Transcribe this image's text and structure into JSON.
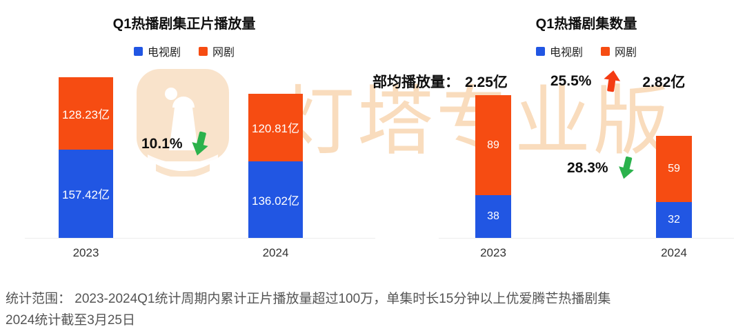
{
  "watermark": {
    "text": "灯塔专业版",
    "logo": "lighthouse-logo",
    "color": "#f8d6b2"
  },
  "accents": {
    "tv_blue": "#2156e3",
    "web_orange": "#f64c12",
    "drop_green": "#2bb24c",
    "rise_red": "#f43b12"
  },
  "chart_data": [
    {
      "type": "bar",
      "stacked": true,
      "title": "Q1热播剧集正片播放量",
      "categories": [
        "2023",
        "2024"
      ],
      "series": [
        {
          "name": "电视剧",
          "color": "#2156e3",
          "values": [
            157.42,
            136.02
          ],
          "labels": [
            "157.42亿",
            "136.02亿"
          ]
        },
        {
          "name": "网剧",
          "color": "#f64c12",
          "values": [
            128.23,
            120.81
          ],
          "labels": [
            "128.23亿",
            "120.81亿"
          ]
        }
      ],
      "ylim": [
        0,
        286
      ],
      "grid": false,
      "legend_position": "top",
      "annotations": [
        {
          "text": "10.1%",
          "direction": "down",
          "color": "#2bb24c"
        }
      ]
    },
    {
      "type": "bar",
      "stacked": true,
      "title": "Q1热播剧集数量",
      "categories": [
        "2023",
        "2024"
      ],
      "series": [
        {
          "name": "电视剧",
          "color": "#2156e3",
          "values": [
            38,
            32
          ],
          "labels": [
            "38",
            "32"
          ]
        },
        {
          "name": "网剧",
          "color": "#f64c12",
          "values": [
            89,
            59
          ],
          "labels": [
            "89",
            "59"
          ]
        }
      ],
      "ylim": [
        0,
        127
      ],
      "grid": false,
      "legend_position": "top",
      "annotations": [
        {
          "text": "部均播放量：",
          "role": "stat-caption"
        },
        {
          "text": "2.25亿",
          "role": "stat-2023"
        },
        {
          "text": "25.5%",
          "direction": "up",
          "color": "#f43b12"
        },
        {
          "text": "2.82亿",
          "role": "stat-2024"
        },
        {
          "text": "28.3%",
          "direction": "down",
          "color": "#2bb24c"
        }
      ]
    }
  ],
  "footer": {
    "line1": "统计范围： 2023-2024Q1统计周期内累计正片播放量超过100万，单集时长15分钟以上优爱腾芒热播剧集",
    "line2": "2024统计截至3月25日"
  }
}
